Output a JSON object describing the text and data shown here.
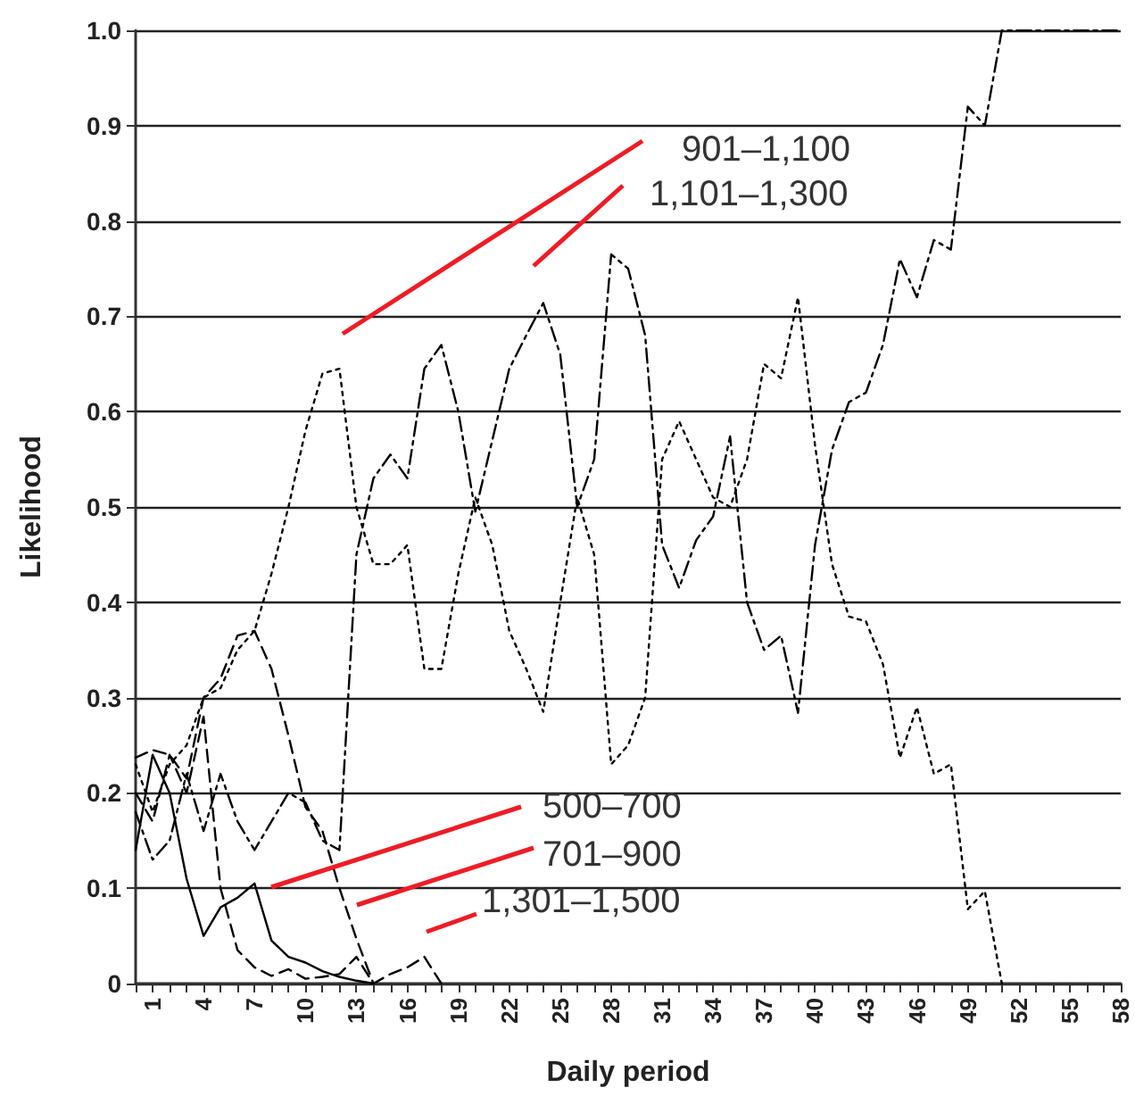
{
  "chart_data": {
    "type": "line",
    "xlabel": "Daily period",
    "ylabel": "Likelihood",
    "categories": [
      null,
      "1",
      null,
      null,
      "4",
      null,
      null,
      "7",
      null,
      null,
      "10",
      null,
      null,
      "13",
      null,
      null,
      "16",
      null,
      null,
      "19",
      null,
      null,
      "22",
      null,
      null,
      "25",
      null,
      null,
      "28",
      null,
      null,
      "31",
      null,
      null,
      "34",
      null,
      null,
      "37",
      null,
      null,
      "40",
      null,
      null,
      "43",
      null,
      null,
      "46",
      null,
      null,
      "49",
      null,
      null,
      "52",
      null,
      null,
      "55",
      null,
      null,
      "58"
    ],
    "ylim": [
      0,
      1
    ],
    "yticks": [
      0,
      {
        "value": 0.1,
        "label": "0.1"
      },
      {
        "value": 0.2,
        "label": "0.2"
      },
      {
        "value": 0.3,
        "label": "0.3"
      },
      {
        "value": 0.4,
        "label": "0.4"
      },
      {
        "value": 0.5,
        "label": "0.5"
      },
      {
        "value": 0.6,
        "label": "0.6"
      },
      {
        "value": 0.7,
        "label": "0.7"
      },
      {
        "value": 0.8,
        "label": "0.8"
      },
      {
        "value": 0.9,
        "label": "0.9"
      },
      {
        "value": 1,
        "label": "1.0"
      }
    ],
    "grid": "y",
    "legend": false,
    "marker": "none",
    "series": [
      {
        "name": "500–700",
        "color": "#000000",
        "line_style": "solid",
        "values": [
          0.14,
          0.24,
          0.2,
          0.11,
          0.05,
          0.08,
          0.09,
          0.105,
          0.045,
          0.028,
          0.022,
          0.013,
          0.007,
          0.003,
          0,
          null,
          null,
          null,
          null,
          null,
          null,
          null,
          null,
          null,
          null,
          null,
          null,
          null,
          null,
          null,
          null,
          null,
          null,
          null,
          null,
          null,
          null,
          null,
          null,
          null,
          null,
          null,
          null,
          null,
          null,
          null,
          null,
          null,
          null,
          null,
          null,
          null,
          null,
          null,
          null,
          null,
          null,
          null,
          null
        ]
      },
      {
        "name": "701–900",
        "color": "#000000",
        "line_style": "dashed",
        "values": [
          0.237,
          0.245,
          0.24,
          0.215,
          0.3,
          0.32,
          0.365,
          0.37,
          0.33,
          0.26,
          0.185,
          0.16,
          0.1,
          0.047,
          0,
          null,
          null,
          null,
          null,
          null,
          null,
          null,
          null,
          null,
          null,
          null,
          null,
          null,
          null,
          null,
          null,
          null,
          null,
          null,
          null,
          null,
          null,
          null,
          null,
          null,
          null,
          null,
          null,
          null,
          null,
          null,
          null,
          null,
          null,
          null,
          null,
          null,
          null,
          null,
          null,
          null,
          null,
          null,
          null
        ]
      },
      {
        "name": "901–1,100",
        "color": "#000000",
        "line_style": "dotted",
        "values": [
          0.23,
          0.18,
          0.23,
          0.25,
          0.3,
          0.31,
          0.35,
          0.37,
          0.43,
          0.5,
          0.58,
          0.64,
          0.645,
          0.5,
          0.44,
          0.44,
          0.46,
          0.33,
          0.33,
          0.43,
          0.51,
          0.46,
          0.37,
          0.33,
          0.285,
          0.4,
          0.51,
          0.45,
          0.23,
          0.25,
          0.3,
          0.55,
          0.59,
          0.55,
          0.51,
          0.5,
          0.55,
          0.65,
          0.635,
          0.72,
          0.565,
          0.44,
          0.385,
          0.38,
          0.335,
          0.237,
          0.29,
          0.22,
          0.23,
          0.078,
          0.097,
          0,
          null,
          null,
          null,
          null,
          null,
          null,
          null
        ]
      },
      {
        "name": "1,101–1,300",
        "color": "#000000",
        "line_style": "dashdot",
        "values": [
          0.18,
          0.13,
          0.15,
          0.22,
          0.16,
          0.22,
          0.17,
          0.14,
          0.17,
          0.2,
          0.19,
          0.15,
          0.14,
          0.45,
          0.53,
          0.555,
          0.53,
          0.645,
          0.67,
          0.6,
          0.495,
          0.57,
          0.645,
          0.68,
          0.714,
          0.66,
          0.5,
          0.55,
          0.765,
          0.75,
          0.68,
          0.46,
          0.415,
          0.465,
          0.49,
          0.574,
          0.4,
          0.35,
          0.365,
          0.284,
          0.46,
          0.56,
          0.61,
          0.62,
          0.67,
          0.76,
          0.72,
          0.78,
          0.77,
          0.92,
          0.9,
          1.0,
          1.0,
          1.0,
          1.0,
          1.0,
          1.0,
          1.0,
          1.0
        ]
      },
      {
        "name": "1,301–1,500",
        "color": "#000000",
        "line_style": "dashed",
        "values": [
          0.2,
          0.17,
          0.24,
          0.2,
          0.28,
          0.1,
          0.035,
          0.017,
          0.008,
          0.015,
          0.005,
          0.007,
          0.01,
          0.028,
          0,
          0.01,
          0.017,
          0.028,
          0,
          null,
          null,
          null,
          null,
          null,
          null,
          null,
          null,
          null,
          null,
          null,
          null,
          null,
          null,
          null,
          null,
          null,
          null,
          null,
          null,
          null,
          null,
          null,
          null,
          null,
          null,
          null,
          null,
          null,
          null,
          null,
          null,
          null,
          null,
          null,
          null,
          null,
          null,
          null,
          null
        ]
      }
    ]
  }
}
